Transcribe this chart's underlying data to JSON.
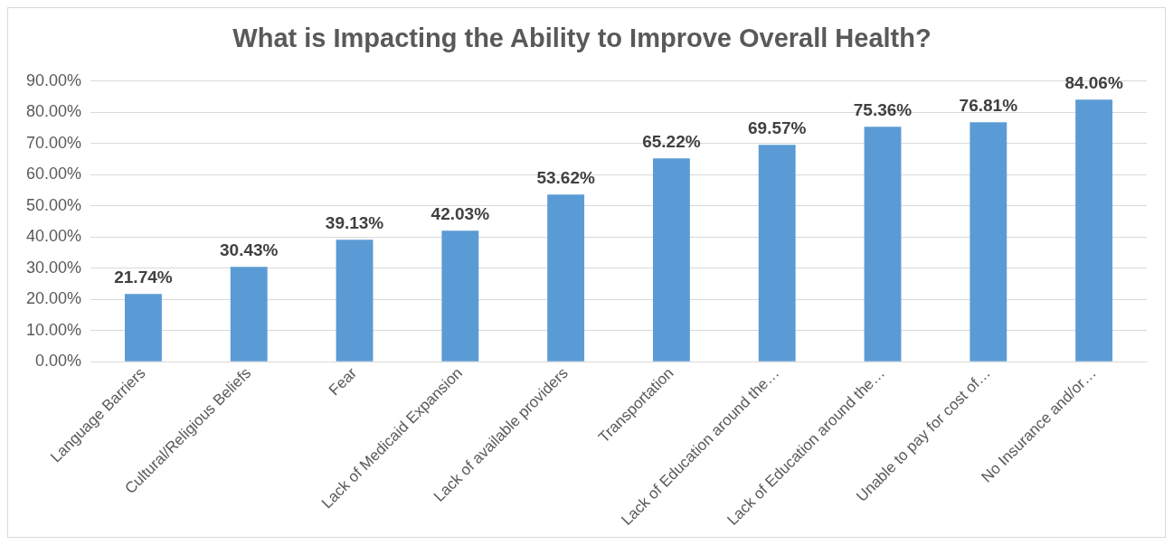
{
  "chart_data": {
    "type": "bar",
    "title": "What is Impacting the Ability to Improve Overall Health?",
    "categories": [
      "Language Barriers",
      "Cultural/Religious Beliefs",
      "Fear",
      "Lack of Medicaid Expansion",
      "Lack of available providers",
      "Transportation",
      "Lack of Education around the…",
      "Lack of Education around the…",
      "Unable to pay for cost of…",
      "No Insurance and/or…"
    ],
    "values": [
      21.74,
      30.43,
      39.13,
      42.03,
      53.62,
      65.22,
      69.57,
      75.36,
      76.81,
      84.06
    ],
    "value_labels": [
      "21.74%",
      "30.43%",
      "39.13%",
      "42.03%",
      "53.62%",
      "65.22%",
      "69.57%",
      "75.36%",
      "76.81%",
      "84.06%"
    ],
    "color": "#5b9bd5",
    "ylim": [
      0,
      90
    ],
    "yticks": [
      {
        "value": 0,
        "label": "0.00%"
      },
      {
        "value": 10,
        "label": "10.00%"
      },
      {
        "value": 20,
        "label": "20.00%"
      },
      {
        "value": 30,
        "label": "30.00%"
      },
      {
        "value": 40,
        "label": "40.00%"
      },
      {
        "value": 50,
        "label": "50.00%"
      },
      {
        "value": 60,
        "label": "60.00%"
      },
      {
        "value": 70,
        "label": "70.00%"
      },
      {
        "value": 80,
        "label": "80.00%"
      },
      {
        "value": 90,
        "label": "90.00%"
      }
    ],
    "grid": "y",
    "legend": false
  }
}
